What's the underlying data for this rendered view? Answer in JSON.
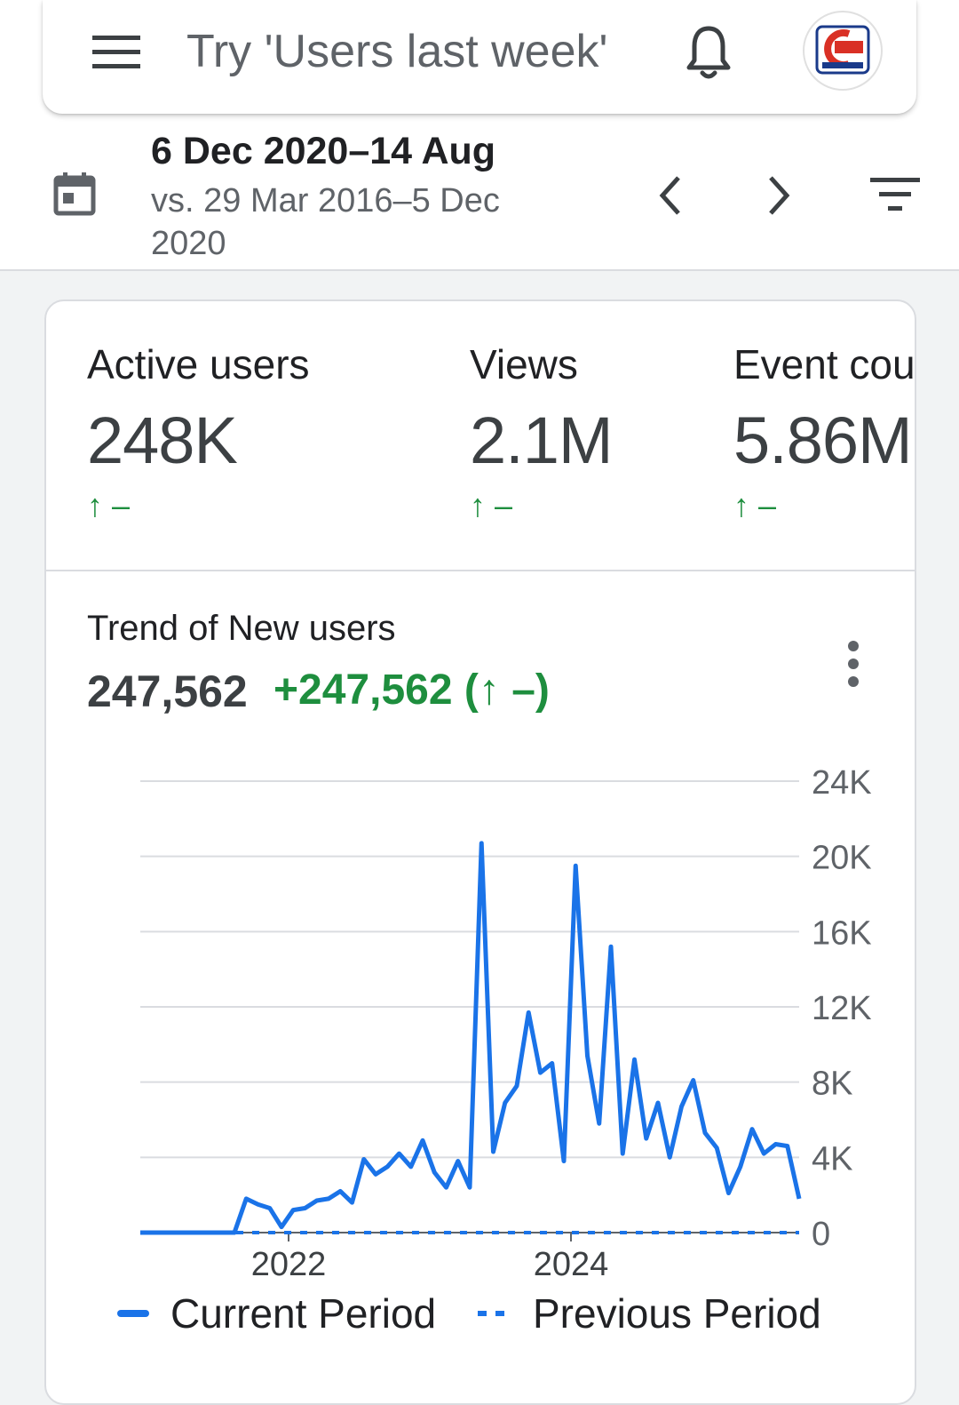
{
  "header": {
    "search_placeholder": "Try 'Users last week'",
    "menu_icon": "menu-icon",
    "notification_icon": "bell-icon",
    "avatar_icon": "account-avatar"
  },
  "date_range": {
    "current": "6 Dec 2020–14 Aug",
    "compare": "vs. 29 Mar 2016–5 Dec 2020"
  },
  "metrics": [
    {
      "label": "Active users",
      "value": "248K",
      "change": "↑ –"
    },
    {
      "label": "Views",
      "value": "2.1M",
      "change": "↑ –"
    },
    {
      "label": "Event count",
      "value": "5.86M",
      "change": "↑ –"
    }
  ],
  "trend": {
    "title": "Trend of New users",
    "total": "247,562",
    "change": "+247,562 (↑ –)"
  },
  "colors": {
    "accent": "#1a73e8",
    "positive": "#1e8e3e"
  },
  "chart_data": {
    "type": "line",
    "x_tick_labels": [
      "2022",
      "2024"
    ],
    "y_tick_labels": [
      "0",
      "4K",
      "8K",
      "12K",
      "16K",
      "20K",
      "24K"
    ],
    "ylim": [
      0,
      24000
    ],
    "grid": true,
    "legend_position": "bottom",
    "series": [
      {
        "name": "Current Period",
        "style": "solid",
        "values": [
          0,
          0,
          0,
          0,
          0,
          0,
          0,
          0,
          0,
          1800,
          1500,
          1300,
          300,
          1200,
          1300,
          1700,
          1800,
          2200,
          1600,
          3900,
          3100,
          3500,
          4200,
          3500,
          4900,
          3200,
          2400,
          3800,
          2400,
          20700,
          4300,
          6900,
          7800,
          11700,
          8500,
          9000,
          3800,
          19500,
          9400,
          5800,
          15200,
          4200,
          9200,
          5000,
          6900,
          4000,
          6700,
          8100,
          5300,
          4500,
          2100,
          3500,
          5500,
          4200,
          4700,
          4600,
          1800
        ]
      },
      {
        "name": "Previous Period",
        "style": "dashed",
        "values": [
          0,
          0,
          0,
          0,
          0,
          0,
          0,
          0,
          0,
          0,
          0,
          0,
          0,
          0,
          0,
          0,
          0,
          0,
          0,
          0,
          0,
          0,
          0,
          0,
          0,
          0,
          0,
          0,
          0,
          0,
          0,
          0,
          0,
          0,
          0,
          0,
          0,
          0,
          0,
          0,
          0,
          0,
          0,
          0,
          0,
          0,
          0,
          0,
          0,
          0,
          0,
          0,
          0,
          0,
          0,
          0,
          0
        ]
      }
    ]
  }
}
